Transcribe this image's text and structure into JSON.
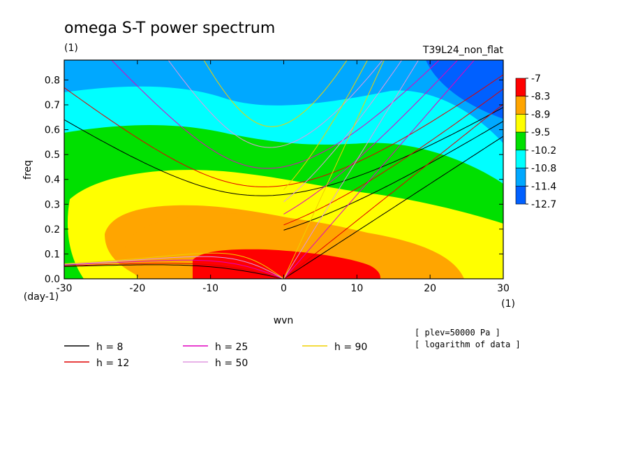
{
  "chart_data": {
    "type": "heatmap",
    "title": "omega S-T power spectrum",
    "subtitle_left": "(1)",
    "subtitle_right": "T39L24_non_flat",
    "xlabel": "wvn",
    "ylabel": "freq",
    "x_unit": "(1)",
    "y_unit": "(day-1)",
    "xlim": [
      -30,
      30
    ],
    "ylim": [
      0,
      0.88
    ],
    "x_ticks": [
      -30,
      -20,
      -10,
      0,
      10,
      20,
      30
    ],
    "y_ticks": [
      0.0,
      0.1,
      0.2,
      0.3,
      0.4,
      0.5,
      0.6,
      0.7,
      0.8
    ],
    "y_tick_labels": [
      "0.0",
      "0.1",
      "0.2",
      "0.3",
      "0.4",
      "0.5",
      "0.6",
      "0.7",
      "0.8"
    ],
    "x_tick_labels": [
      "-30",
      "-20",
      "-10",
      "0",
      "10",
      "20",
      "30"
    ],
    "colorbar": {
      "labels": [
        "-7",
        "-8.3",
        "-8.9",
        "-9.5",
        "-10.2",
        "-10.8",
        "-11.4",
        "-12.7"
      ],
      "colors": [
        "#ff0000",
        "#ffa500",
        "#ffff00",
        "#00e000",
        "#00ffff",
        "#00a8ff",
        "#0060ff"
      ]
    },
    "contour_levels": [
      -7,
      -8.3,
      -8.9,
      -9.5,
      -10.2,
      -10.8,
      -11.4,
      -12.7
    ],
    "dispersion_curves": [
      {
        "name": "h =  8",
        "h": 8,
        "color": "#000000"
      },
      {
        "name": "h = 12",
        "h": 12,
        "color": "#e00000"
      },
      {
        "name": "h = 25",
        "h": 25,
        "color": "#e000c0"
      },
      {
        "name": "h = 50",
        "h": 50,
        "color": "#e098e0"
      },
      {
        "name": "h = 90",
        "h": 90,
        "color": "#f0d000"
      }
    ],
    "notes": [
      "[ plev=50000 Pa ]",
      "[ logarithm of data ]"
    ]
  }
}
